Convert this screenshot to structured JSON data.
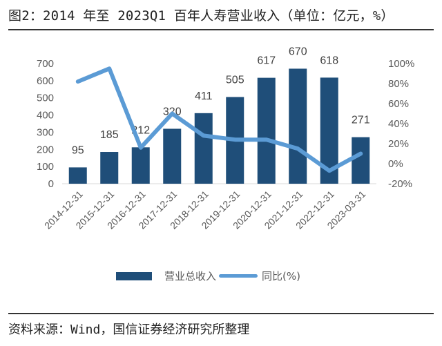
{
  "title": "图2：2014 年至 2023Q1 百年人寿营业收入（单位：亿元，%）",
  "source": "资料来源：Wind，国信证券经济研究所整理",
  "colors": {
    "bar": "#1f4e79",
    "line": "#5b9bd5",
    "axis": "#d9d9d9",
    "text": "#595959"
  },
  "chart_data": {
    "type": "bar",
    "title": "2014 年至 2023Q1 百年人寿营业收入（单位：亿元，%）",
    "categories": [
      "2014-12-31",
      "2015-12-31",
      "2016-12-31",
      "2017-12-31",
      "2018-12-31",
      "2019-12-31",
      "2020-12-31",
      "2021-12-31",
      "2022-12-31",
      "2023-03-31"
    ],
    "series": [
      {
        "name": "营业总收入",
        "type": "bar",
        "axis": "left",
        "values": [
          95,
          185,
          212,
          320,
          411,
          505,
          617,
          670,
          618,
          271
        ],
        "labels": [
          "95",
          "185",
          "212",
          "320",
          "411",
          "505",
          "617",
          "670",
          "618",
          "271"
        ]
      },
      {
        "name": "同比(%)",
        "type": "line",
        "axis": "right",
        "values": [
          82,
          95,
          16,
          50,
          28,
          24,
          24,
          15,
          -7,
          10
        ]
      }
    ],
    "y_left": {
      "min": 0,
      "max": 700,
      "ticks": [
        "0",
        "100",
        "200",
        "300",
        "400",
        "500",
        "600",
        "700"
      ],
      "tick_values": [
        0,
        100,
        200,
        300,
        400,
        500,
        600,
        700
      ]
    },
    "y_right": {
      "min": -20,
      "max": 100,
      "ticks": [
        "-20%",
        "0%",
        "20%",
        "40%",
        "60%",
        "80%",
        "100%"
      ],
      "tick_values": [
        -20,
        0,
        20,
        40,
        60,
        80,
        100
      ]
    },
    "xlabel": "",
    "ylabel": "",
    "grid": false,
    "legend_position": "bottom"
  },
  "legend": {
    "bar_label": "营业总收入",
    "line_label": "同比(%)"
  }
}
